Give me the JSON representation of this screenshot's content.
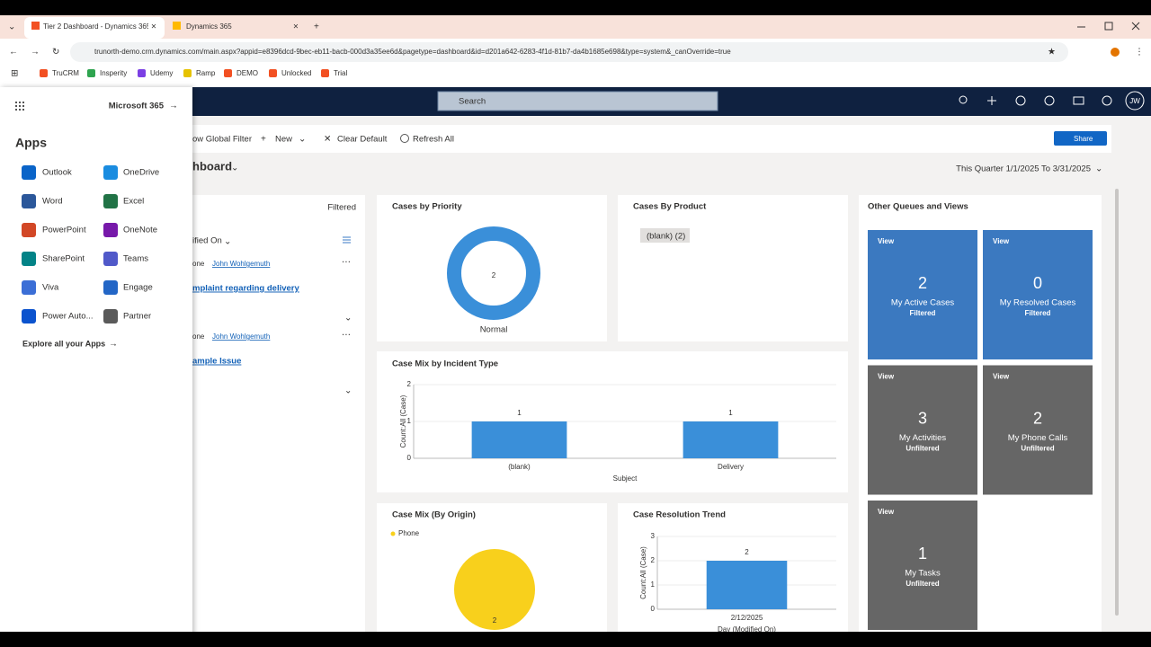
{
  "browser": {
    "tabs": [
      "Tier 2 Dashboard - Dynamics 365",
      "Dynamics 365"
    ],
    "url": "trunorth-demo.crm.dynamics.com/main.aspx?appid=e8396dcd-9bec-eb11-bacb-000d3a35ee6d&pagetype=dashboard&id=d201a642-6283-4f1d-81b7-da4b1685e698&type=system&_canOverride=true",
    "bookmarks": [
      "TruCRM",
      "Insperity",
      "Udemy",
      "Ramp",
      "DEMO",
      "Unlocked",
      "Trial"
    ]
  },
  "header": {
    "search": "Search",
    "avatar": "JW"
  },
  "toolbar": {
    "global_filter": "ow Global Filter",
    "new": "New",
    "clear_default": "Clear Default",
    "refresh_all": "Refresh All",
    "share": "Share"
  },
  "dashboard": {
    "title": "hboard",
    "period": "This Quarter 1/1/2025 To 3/31/2025"
  },
  "stream": {
    "filter": "Filtered",
    "sort": "ified On",
    "items": [
      {
        "prefix": "one",
        "owner": "John Wohlgemuth",
        "title": "mplaint regarding delivery"
      },
      {
        "prefix": "one",
        "owner": "John Wohlgemuth",
        "title": "ample Issue"
      }
    ]
  },
  "product_card": {
    "title": "Cases By Product",
    "chip": "(blank) (2)"
  },
  "chart_data": [
    {
      "type": "donut",
      "title": "Cases by Priority",
      "categories": [
        "Normal"
      ],
      "values": [
        2
      ],
      "color": "#3a8fd9"
    },
    {
      "type": "bar",
      "title": "Case Mix by Incident Type",
      "categories": [
        "(blank)",
        "Delivery"
      ],
      "values": [
        1,
        1
      ],
      "color": "#3a8fd9",
      "ylim": [
        0,
        2
      ],
      "yticks": [
        0,
        1,
        2
      ],
      "y_label": "Count:All (Case)",
      "x_label": "Subject"
    },
    {
      "type": "pie",
      "title": "Case Mix (By Origin)",
      "categories": [
        "Phone"
      ],
      "values": [
        2
      ],
      "color": "#f8d01c",
      "legend": true
    },
    {
      "type": "bar",
      "title": "Case Resolution Trend",
      "categories": [
        "2/12/2025"
      ],
      "values": [
        2
      ],
      "color": "#3a8fd9",
      "ylim": [
        0,
        3
      ],
      "yticks": [
        0,
        1,
        2,
        3
      ],
      "y_label": "Count:All (Case)",
      "x_label": "Day (Modified On)"
    }
  ],
  "queues": {
    "title": "Other Queues and Views",
    "tiles": [
      {
        "label": "View",
        "count": 2,
        "name": "My Active Cases",
        "status": "Filtered",
        "color": "#3b79c0"
      },
      {
        "label": "View",
        "count": 0,
        "name": "My Resolved Cases",
        "status": "Filtered",
        "color": "#3b79c0"
      },
      {
        "label": "View",
        "count": 3,
        "name": "My Activities",
        "status": "Unfiltered",
        "color": "#666666"
      },
      {
        "label": "View",
        "count": 2,
        "name": "My Phone Calls",
        "status": "Unfiltered",
        "color": "#666666"
      },
      {
        "label": "View",
        "count": 1,
        "name": "My Tasks",
        "status": "Unfiltered",
        "color": "#666666"
      }
    ]
  },
  "apps_panel": {
    "m365": "Microsoft 365",
    "title": "Apps",
    "apps": [
      "Outlook",
      "OneDrive",
      "Word",
      "Excel",
      "PowerPoint",
      "OneNote",
      "SharePoint",
      "Teams",
      "Viva",
      "Engage",
      "Power Auto...",
      "Partner"
    ],
    "explore": "Explore all your Apps"
  }
}
